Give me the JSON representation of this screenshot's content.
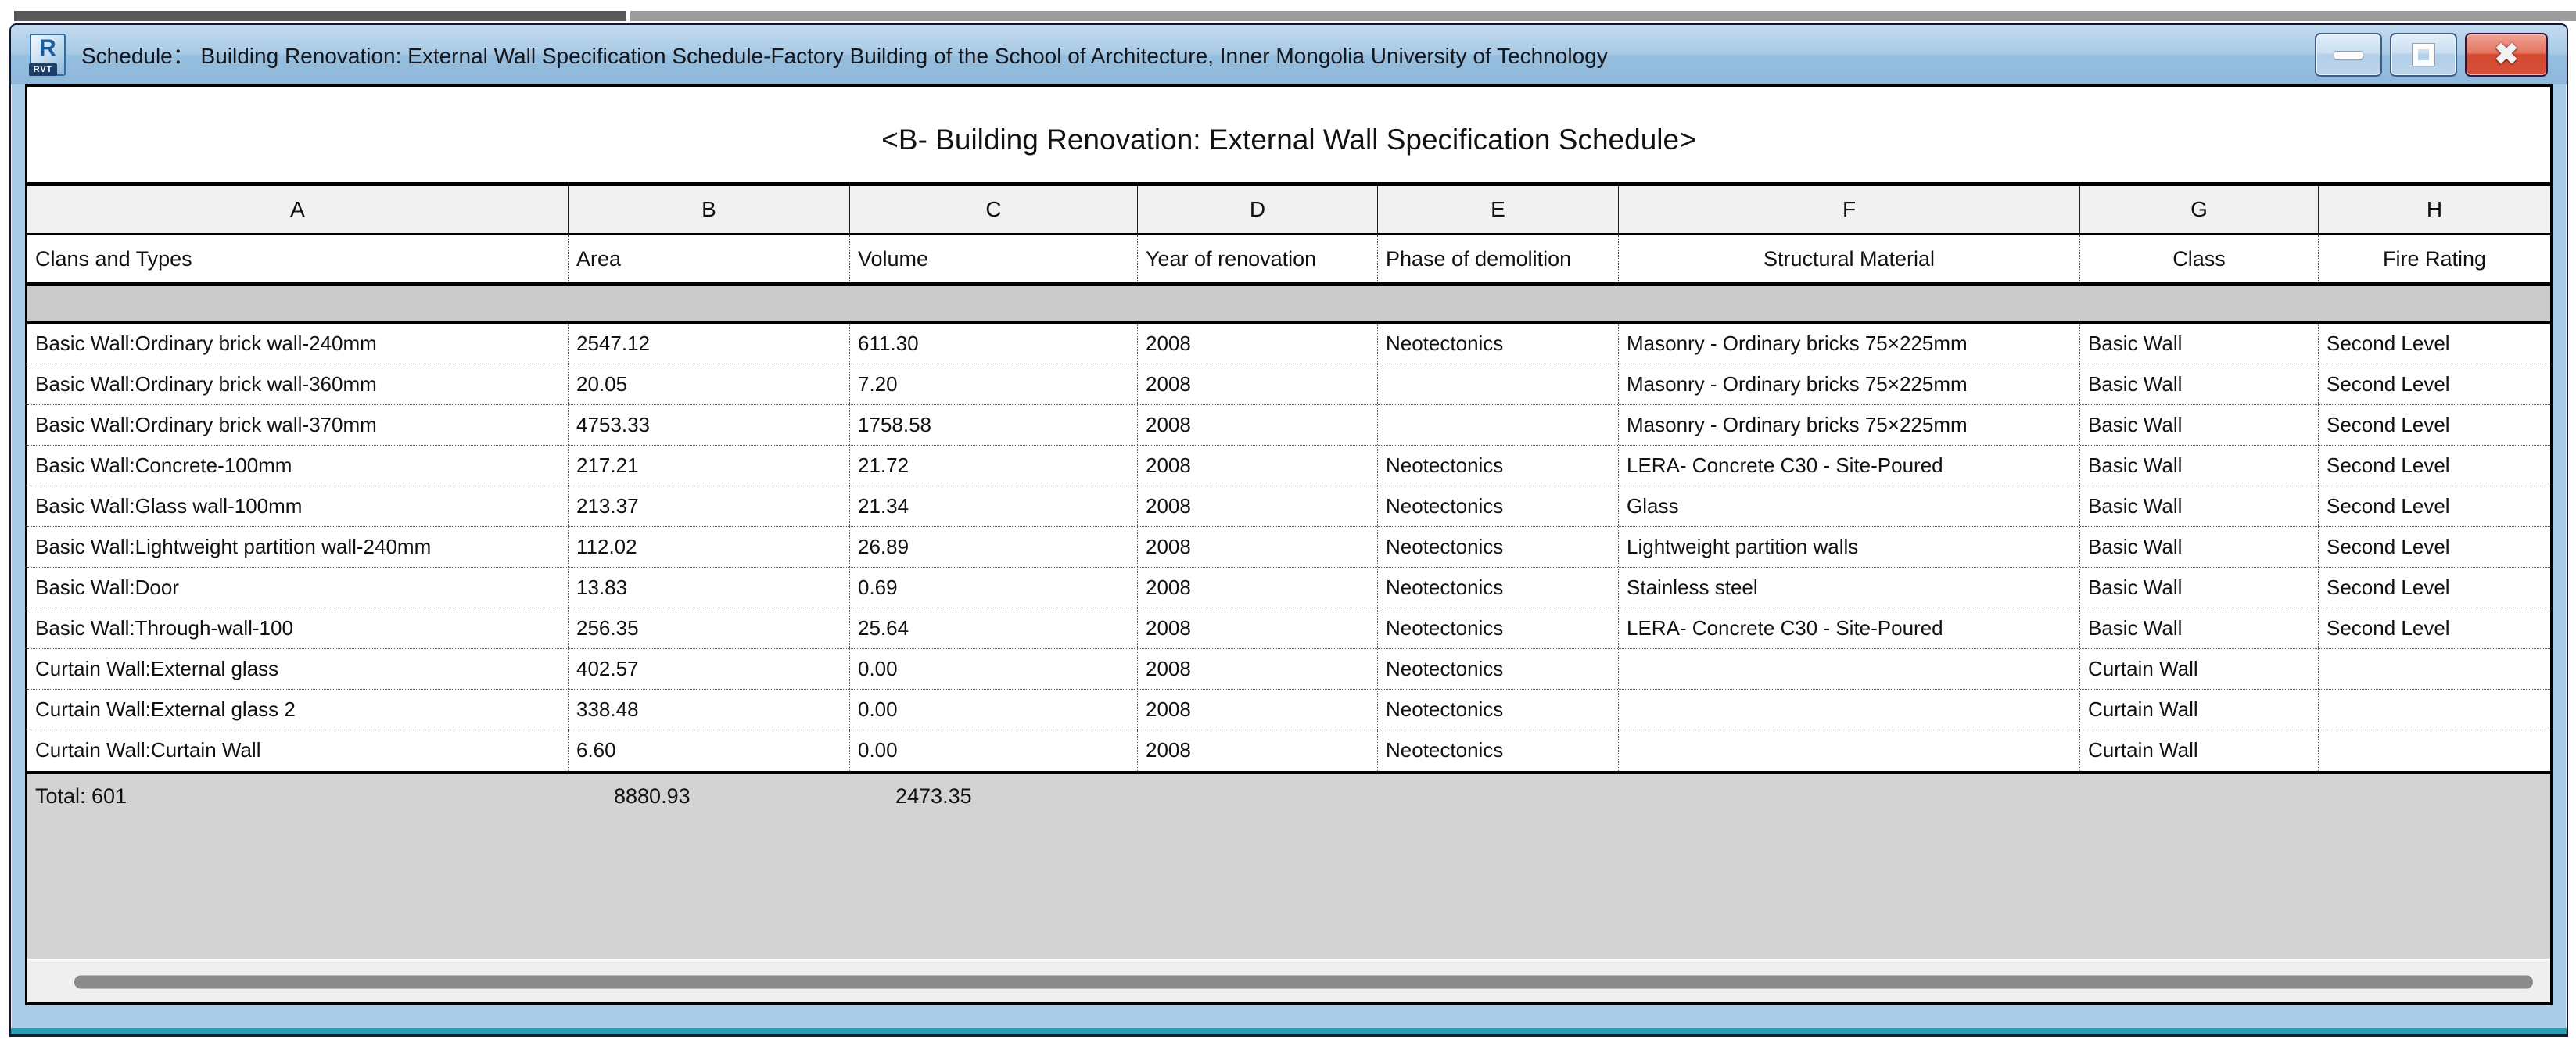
{
  "window": {
    "title": "Schedule：  Building Renovation: External Wall Specification Schedule-Factory Building of the School of Architecture, Inner Mongolia University of Technology",
    "icon": {
      "letter": "R",
      "label": "RVT"
    },
    "controls": {
      "close_glyph": "✖"
    }
  },
  "schedule": {
    "title": "<B- Building Renovation: External Wall Specification Schedule>",
    "columns": [
      {
        "letter": "A",
        "label": "Clans and Types",
        "align": "left"
      },
      {
        "letter": "B",
        "label": "Area",
        "align": "left"
      },
      {
        "letter": "C",
        "label": "Volume",
        "align": "left"
      },
      {
        "letter": "D",
        "label": "Year of renovation",
        "align": "left"
      },
      {
        "letter": "E",
        "label": "Phase of demolition",
        "align": "left"
      },
      {
        "letter": "F",
        "label": "Structural Material",
        "align": "center"
      },
      {
        "letter": "G",
        "label": "Class",
        "align": "center"
      },
      {
        "letter": "H",
        "label": "Fire Rating",
        "align": "center"
      }
    ],
    "rows": [
      [
        "Basic Wall:Ordinary brick wall-240mm",
        "2547.12",
        "611.30",
        "2008",
        "Neotectonics",
        "Masonry - Ordinary bricks 75×225mm",
        "Basic Wall",
        "Second Level"
      ],
      [
        "Basic Wall:Ordinary brick wall-360mm",
        "20.05",
        "7.20",
        "2008",
        "",
        "Masonry - Ordinary bricks 75×225mm",
        "Basic Wall",
        "Second Level"
      ],
      [
        "Basic Wall:Ordinary brick wall-370mm",
        "4753.33",
        "1758.58",
        "2008",
        "",
        "Masonry - Ordinary bricks 75×225mm",
        "Basic Wall",
        "Second Level"
      ],
      [
        "Basic Wall:Concrete-100mm",
        "217.21",
        "21.72",
        "2008",
        "Neotectonics",
        "LERA- Concrete C30 - Site-Poured",
        "Basic Wall",
        "Second Level"
      ],
      [
        "Basic Wall:Glass wall-100mm",
        "213.37",
        "21.34",
        "2008",
        "Neotectonics",
        "Glass",
        "Basic Wall",
        "Second Level"
      ],
      [
        "Basic Wall:Lightweight partition wall-240mm",
        "112.02",
        "26.89",
        "2008",
        "Neotectonics",
        "Lightweight partition walls",
        "Basic Wall",
        "Second Level"
      ],
      [
        "Basic Wall:Door",
        "13.83",
        "0.69",
        "2008",
        "Neotectonics",
        "Stainless steel",
        "Basic Wall",
        "Second Level"
      ],
      [
        "Basic Wall:Through-wall-100",
        "256.35",
        "25.64",
        "2008",
        "Neotectonics",
        "LERA- Concrete C30 - Site-Poured",
        "Basic Wall",
        "Second Level"
      ],
      [
        "Curtain Wall:External glass",
        "402.57",
        "0.00",
        "2008",
        "Neotectonics",
        "",
        "Curtain Wall",
        ""
      ],
      [
        "Curtain Wall:External glass 2",
        "338.48",
        "0.00",
        "2008",
        "Neotectonics",
        "",
        "Curtain Wall",
        ""
      ],
      [
        "Curtain Wall:Curtain Wall",
        "6.60",
        "0.00",
        "2008",
        "Neotectonics",
        "",
        "Curtain Wall",
        ""
      ]
    ],
    "total": {
      "label": "Total: 601",
      "area": "8880.93",
      "volume": "2473.35"
    }
  },
  "colors": {
    "titlebar_blue": "#a9cce8",
    "close_red": "#d44830",
    "teal_edge": "#21a2b2",
    "header_gray": "#f1f1f1",
    "spacer_gray": "#cbcbcb",
    "total_gray": "#d3d3d3"
  }
}
